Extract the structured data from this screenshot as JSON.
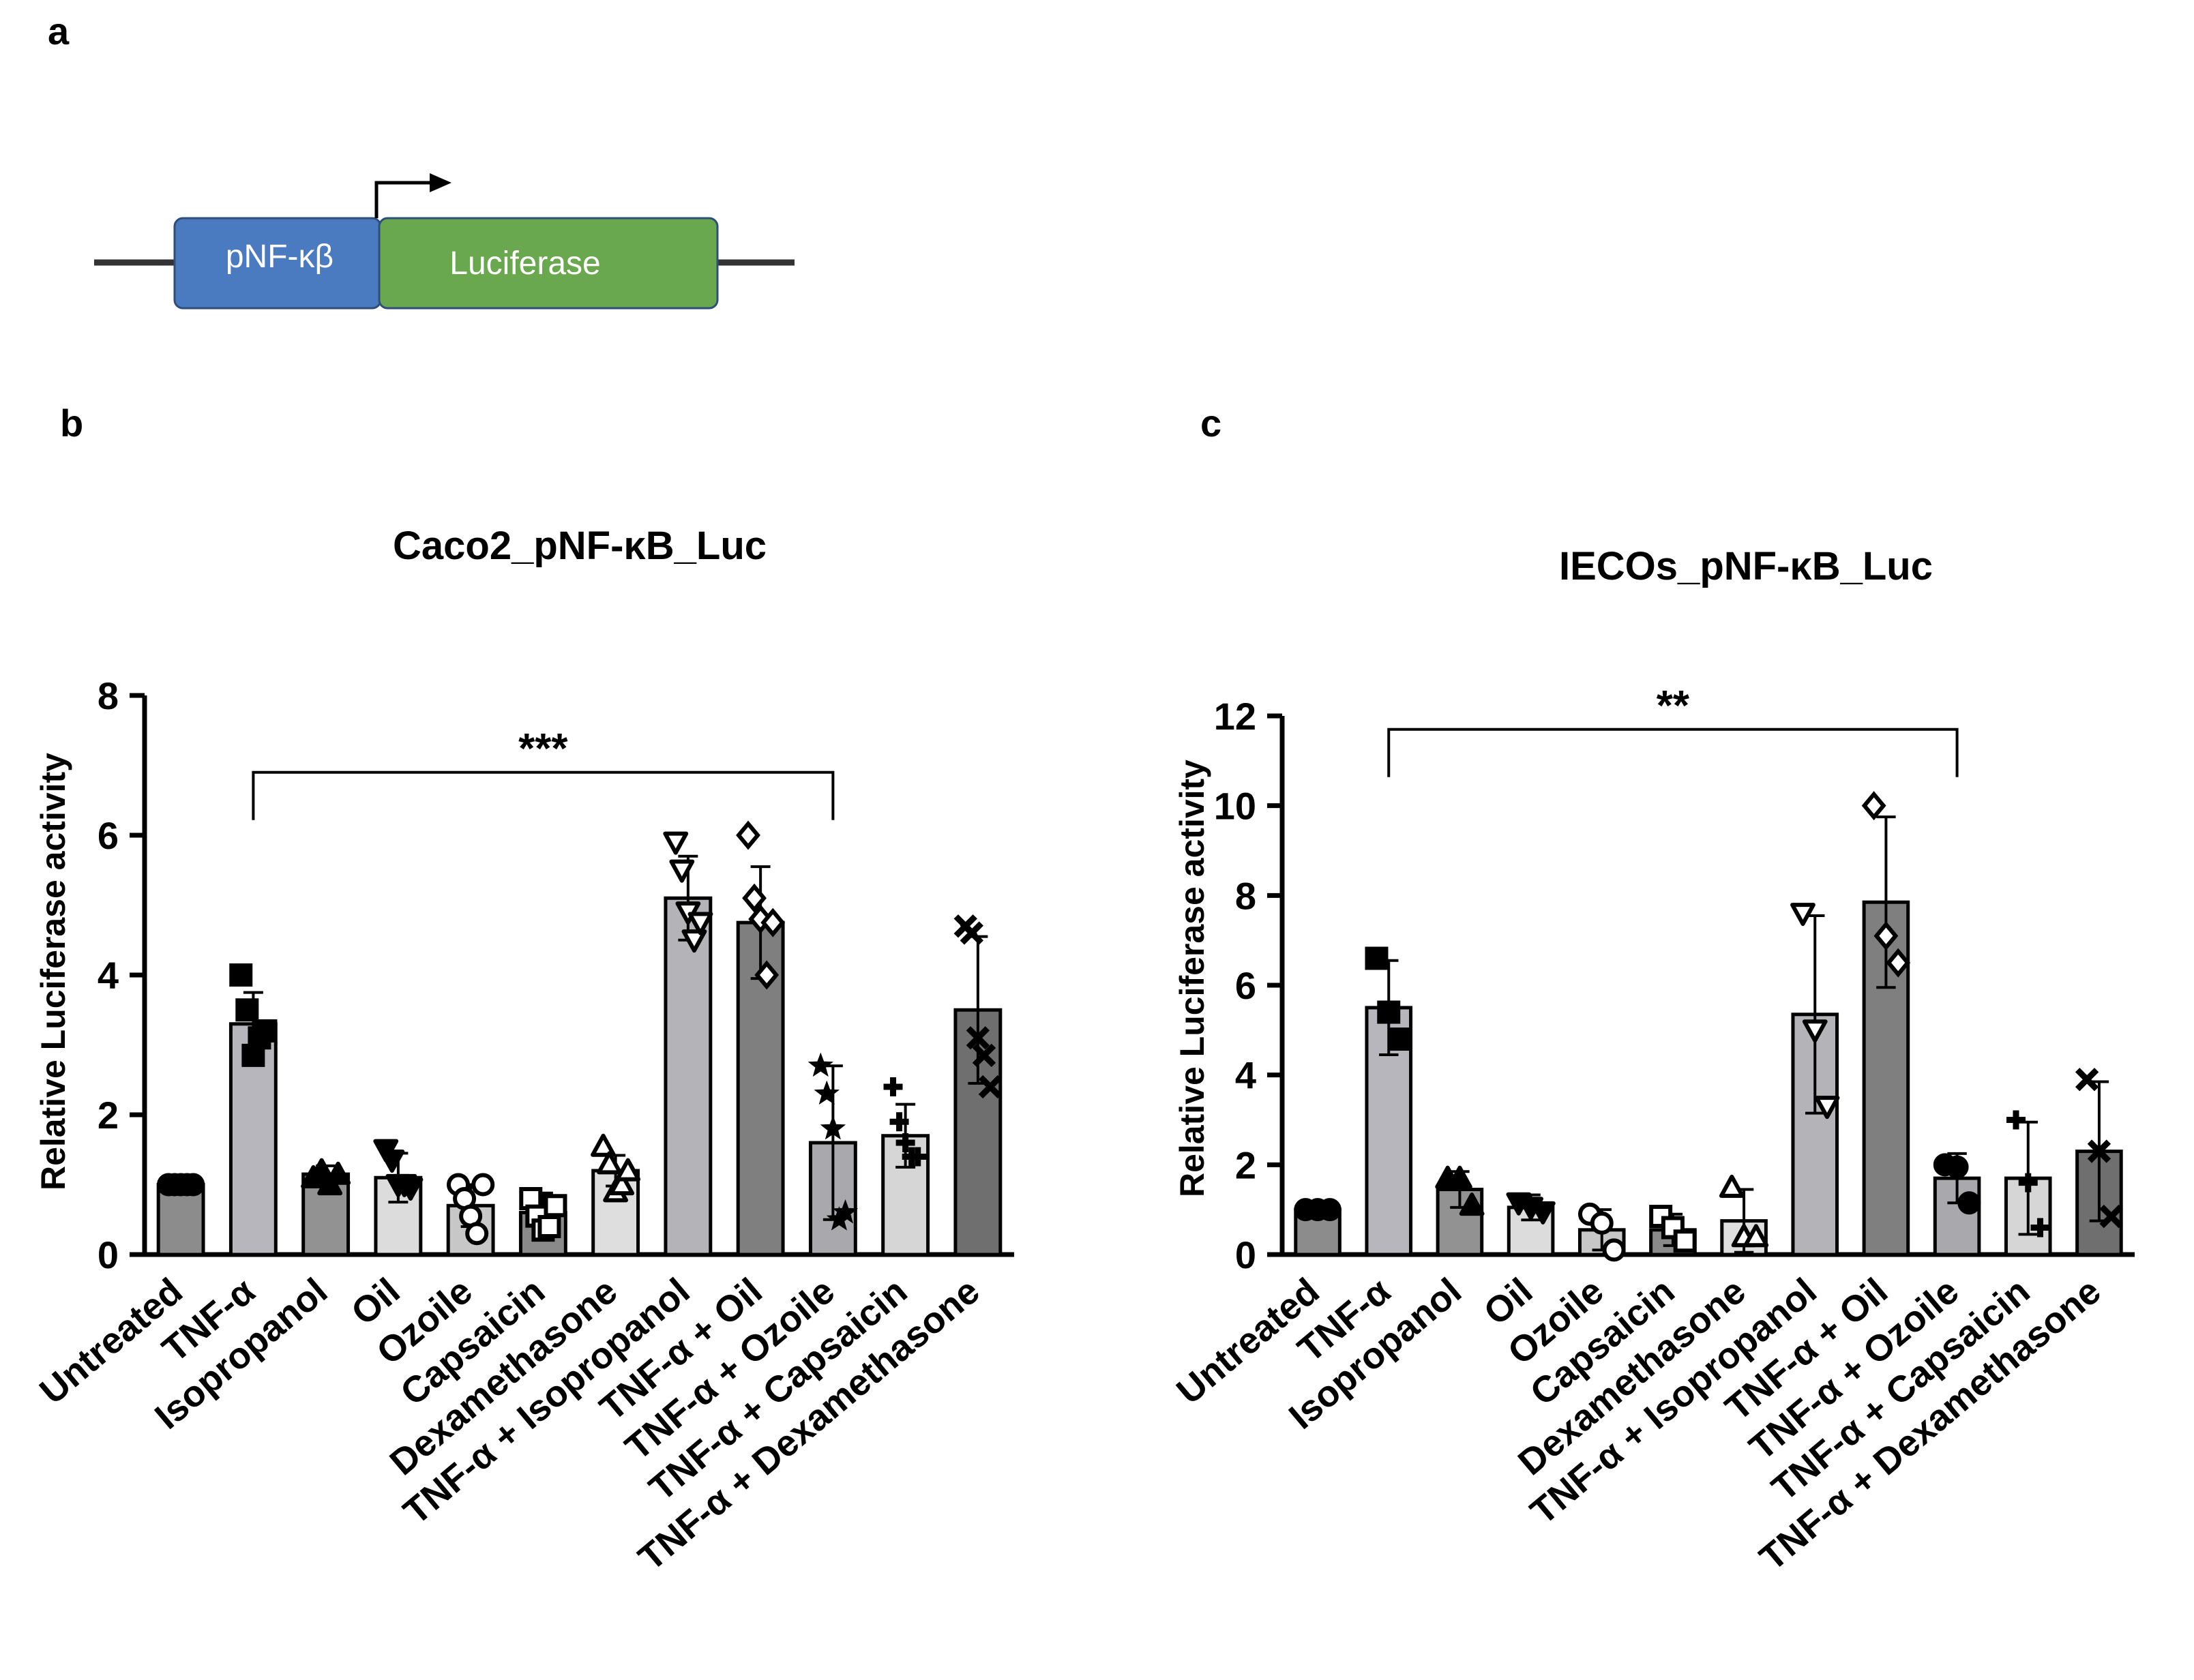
{
  "panel_labels": {
    "a": "a",
    "b": "b",
    "c": "c"
  },
  "construct": {
    "promoter_label": "pNF-κβ",
    "gene_label": "Luciferase",
    "promoter_color": "#4a7bc0",
    "gene_color": "#6aa84f",
    "border_color": "#2e4f7a"
  },
  "bar_colors": [
    "#8c8c8c",
    "#b6b6bc",
    "#929292",
    "#dcdcdc",
    "#c7c7c7",
    "#8a8a8a",
    "#dedede",
    "#b3b3b8",
    "#7f7f7f",
    "#a9a9ad",
    "#d6d6d6",
    "#6f6f6f"
  ],
  "chart_data": [
    {
      "type": "bar",
      "title": "Caco2_pNF-κB_Luc",
      "ylabel": "Relative Luciferase activity",
      "xlabel": "",
      "ylim": [
        0,
        8
      ],
      "yticks": [
        0,
        2,
        4,
        6,
        8
      ],
      "categories": [
        "Untreated",
        "TNF-α",
        "Isopropanol",
        "Oil",
        "Ozoile",
        "Capsaicin",
        "Dexamethasone",
        "TNF-α + Isopropanol",
        "TNF-α + Oil",
        "TNF-α + Ozoile",
        "TNF-α + Capsaicin",
        "TNF-α + Dexamethasone"
      ],
      "values": [
        1.0,
        3.3,
        1.15,
        1.1,
        0.7,
        0.6,
        1.2,
        5.1,
        4.75,
        1.6,
        1.7,
        3.5
      ],
      "errors": [
        0.02,
        0.45,
        0.12,
        0.35,
        0.3,
        0.28,
        0.22,
        0.6,
        0.8,
        1.1,
        0.45,
        1.05
      ],
      "markers": [
        "circle",
        "square",
        "triangle",
        "triangle-down",
        "circle-open",
        "square-open",
        "triangle-open",
        "triangle-down-open",
        "diamond-open",
        "star",
        "plus",
        "cross"
      ],
      "points": [
        [
          1.0,
          1.0,
          1.0,
          1.0,
          1.0
        ],
        [
          4.0,
          3.5,
          2.85,
          3.1,
          3.2
        ],
        [
          1.1,
          1.2,
          1.0,
          1.15
        ],
        [
          1.5,
          1.35,
          1.0,
          1.0,
          0.95
        ],
        [
          1.0,
          0.8,
          0.55,
          0.3,
          1.0
        ],
        [
          0.8,
          0.55,
          0.35,
          0.4,
          0.7
        ],
        [
          1.55,
          1.3,
          0.9,
          1.0,
          1.2
        ],
        [
          5.9,
          5.5,
          4.9,
          4.5,
          4.75
        ],
        [
          6.0,
          5.1,
          4.8,
          4.0,
          4.75
        ],
        [
          2.7,
          2.3,
          1.8,
          0.5,
          0.6
        ],
        [
          2.4,
          1.9,
          1.6,
          1.4,
          1.4
        ],
        [
          4.7,
          4.6,
          3.1,
          2.85,
          2.4
        ]
      ],
      "significance": {
        "from": 1,
        "to": 9,
        "label": "***",
        "y": 6.9
      }
    },
    {
      "type": "bar",
      "title": "IECOs_pNF-κB_Luc",
      "ylabel": "Relative Luciferase activity",
      "xlabel": "",
      "ylim": [
        0,
        12
      ],
      "yticks": [
        0,
        2,
        4,
        6,
        8,
        10,
        12
      ],
      "categories": [
        "Untreated",
        "TNF-α",
        "Isopropanol",
        "Oil",
        "Ozoile",
        "Capsaicin",
        "Dexamethasone",
        "TNF-α + Isopropanol",
        "TNF-α + Oil",
        "TNF-α + Ozoile",
        "TNF-α + Capsaicin",
        "TNF-α + Dexamethasone"
      ],
      "values": [
        1.0,
        5.5,
        1.45,
        1.05,
        0.55,
        0.55,
        0.75,
        5.35,
        7.85,
        1.7,
        1.7,
        2.3
      ],
      "errors": [
        0.02,
        1.05,
        0.4,
        0.28,
        0.45,
        0.35,
        0.7,
        2.2,
        1.9,
        0.55,
        1.25,
        1.55
      ],
      "markers": [
        "circle",
        "square",
        "triangle",
        "triangle-down",
        "circle-open",
        "square-open",
        "triangle-open",
        "triangle-down-open",
        "diamond-open",
        "circle",
        "plus",
        "cross"
      ],
      "points": [
        [
          1.0,
          1.0,
          1.0
        ],
        [
          6.6,
          5.4,
          4.8
        ],
        [
          1.7,
          1.7,
          1.1
        ],
        [
          1.15,
          1.05,
          0.95
        ],
        [
          0.9,
          0.7,
          0.1
        ],
        [
          0.85,
          0.6,
          0.3
        ],
        [
          1.5,
          0.4,
          0.4
        ],
        [
          7.6,
          5.0,
          3.3
        ],
        [
          10.0,
          7.1,
          6.5
        ],
        [
          2.0,
          1.95,
          1.15
        ],
        [
          3.0,
          1.6,
          0.6
        ],
        [
          3.9,
          2.3,
          0.85
        ]
      ],
      "significance": {
        "from": 1,
        "to": 9,
        "label": "**",
        "y": 11.7
      }
    }
  ]
}
